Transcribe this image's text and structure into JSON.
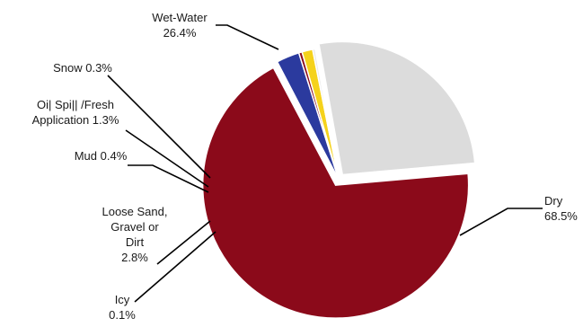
{
  "chart_data": {
    "type": "pie",
    "title": "",
    "slices": [
      {
        "category": "Dry",
        "value": 68.5,
        "label_lines": [
          "Dry",
          "68.5%"
        ],
        "color": "#8b0a1a",
        "exploded": true
      },
      {
        "category": "Icy",
        "value": 0.1,
        "label_lines": [
          "Icy",
          "0.1%"
        ],
        "color": "#f2f2f2",
        "exploded": false
      },
      {
        "category": "Loose Sand, Gravel or Dirt",
        "value": 2.8,
        "label_lines": [
          "Loose Sand,",
          "Gravel or",
          "Dirt",
          "2.8%"
        ],
        "color": "#2b3a9e",
        "exploded": false
      },
      {
        "category": "Mud",
        "value": 0.4,
        "label_lines": [
          "Mud 0.4%"
        ],
        "color": "#8b0a1a",
        "exploded": false
      },
      {
        "category": "Oil Spill /Fresh Application",
        "value": 1.3,
        "label_lines": [
          "Oi| Spi|| /Fresh",
          "Application 1.3%"
        ],
        "color": "#f5d21c",
        "exploded": false
      },
      {
        "category": "Snow",
        "value": 0.3,
        "label_lines": [
          "Snow 0.3%"
        ],
        "color": "#e8e8e8",
        "exploded": false
      },
      {
        "category": "Wet-Water",
        "value": 26.4,
        "label_lines": [
          "Wet-Water",
          "26.4%"
        ],
        "color": "#dcdcdc",
        "exploded": true
      }
    ],
    "legend": "none",
    "label_style": "callouts with leader lines"
  }
}
